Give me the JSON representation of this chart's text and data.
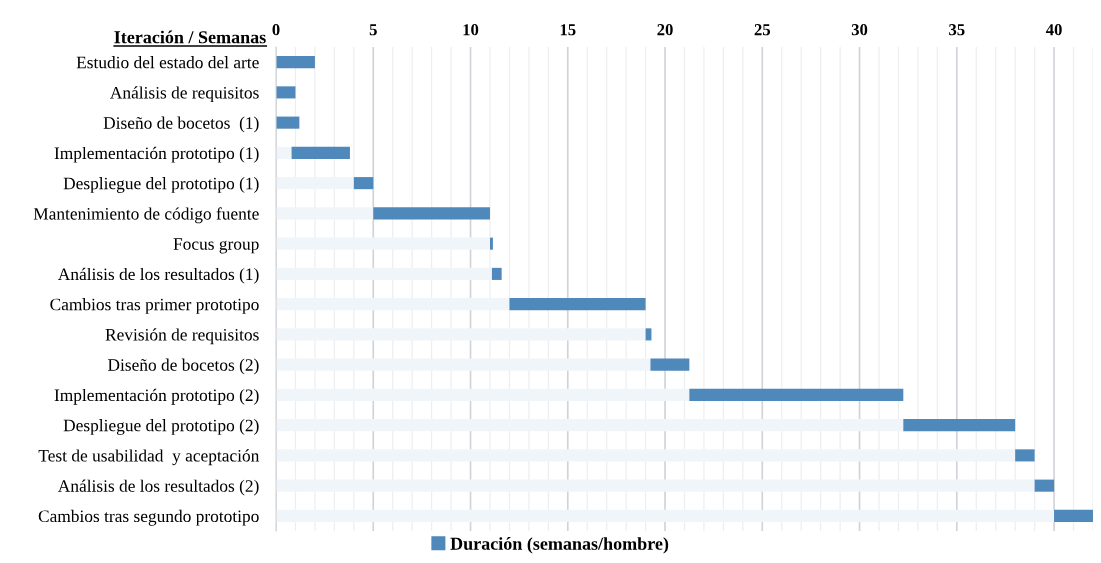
{
  "chart_data": {
    "type": "bar",
    "orientation": "horizontal",
    "stacked": true,
    "ylabel": "Iteración / Semanas",
    "categories": [
      "Estudio del estado del arte",
      "Análisis de requisitos",
      "Diseño de bocetos  (1)",
      "Implementación prototipo (1)",
      "Despliegue del prototipo (1)",
      "Mantenimiento de código fuente",
      "Focus group",
      "Análisis de los resultados (1)",
      "Cambios tras primer prototipo",
      "Revisión de requisitos",
      "Diseño de bocetos (2)",
      "Implementación prototipo (2)",
      "Despliegue del prototipo (2)",
      "Test de usabilidad  y aceptación",
      "Análisis de los resultados (2)",
      "Cambios tras segundo prototipo"
    ],
    "series": [
      {
        "color": "#f0f5fa",
        "values": [
          0,
          0,
          0,
          0.8,
          4,
          5,
          11,
          11.1,
          12,
          19,
          19.25,
          21.25,
          32.25,
          38,
          39,
          40
        ]
      },
      {
        "name": "Duración (semanas/hombre)",
        "color": "#4f88bb",
        "values": [
          2,
          1,
          1.2,
          3,
          1,
          6,
          0.15,
          0.5,
          7,
          0.3,
          2,
          11,
          5.75,
          1,
          1,
          2
        ]
      }
    ],
    "xlim": [
      0,
      42
    ],
    "xticks": [
      0,
      {
        "value": 1,
        "label": null
      },
      {
        "value": 2,
        "label": null
      },
      {
        "value": 3,
        "label": null
      },
      {
        "value": 4,
        "label": null
      },
      5,
      {
        "value": 6,
        "label": null
      },
      {
        "value": 7,
        "label": null
      },
      {
        "value": 8,
        "label": null
      },
      {
        "value": 9,
        "label": null
      },
      10,
      {
        "value": 11,
        "label": null
      },
      {
        "value": 12,
        "label": null
      },
      {
        "value": 13,
        "label": null
      },
      {
        "value": 14,
        "label": null
      },
      15,
      {
        "value": 16,
        "label": null
      },
      {
        "value": 17,
        "label": null
      },
      {
        "value": 18,
        "label": null
      },
      {
        "value": 19,
        "label": null
      },
      20,
      {
        "value": 21,
        "label": null
      },
      {
        "value": 22,
        "label": null
      },
      {
        "value": 23,
        "label": null
      },
      {
        "value": 24,
        "label": null
      },
      25,
      {
        "value": 26,
        "label": null
      },
      {
        "value": 27,
        "label": null
      },
      {
        "value": 28,
        "label": null
      },
      {
        "value": 29,
        "label": null
      },
      30,
      {
        "value": 31,
        "label": null
      },
      {
        "value": 32,
        "label": null
      },
      {
        "value": 33,
        "label": null
      },
      {
        "value": 34,
        "label": null
      },
      35,
      {
        "value": 36,
        "label": null
      },
      {
        "value": 37,
        "label": null
      },
      {
        "value": 38,
        "label": null
      },
      {
        "value": 39,
        "label": null
      },
      40,
      {
        "value": 41,
        "label": null
      },
      {
        "value": 42,
        "label": null
      }
    ],
    "grid": "x",
    "legend": "bottom"
  }
}
